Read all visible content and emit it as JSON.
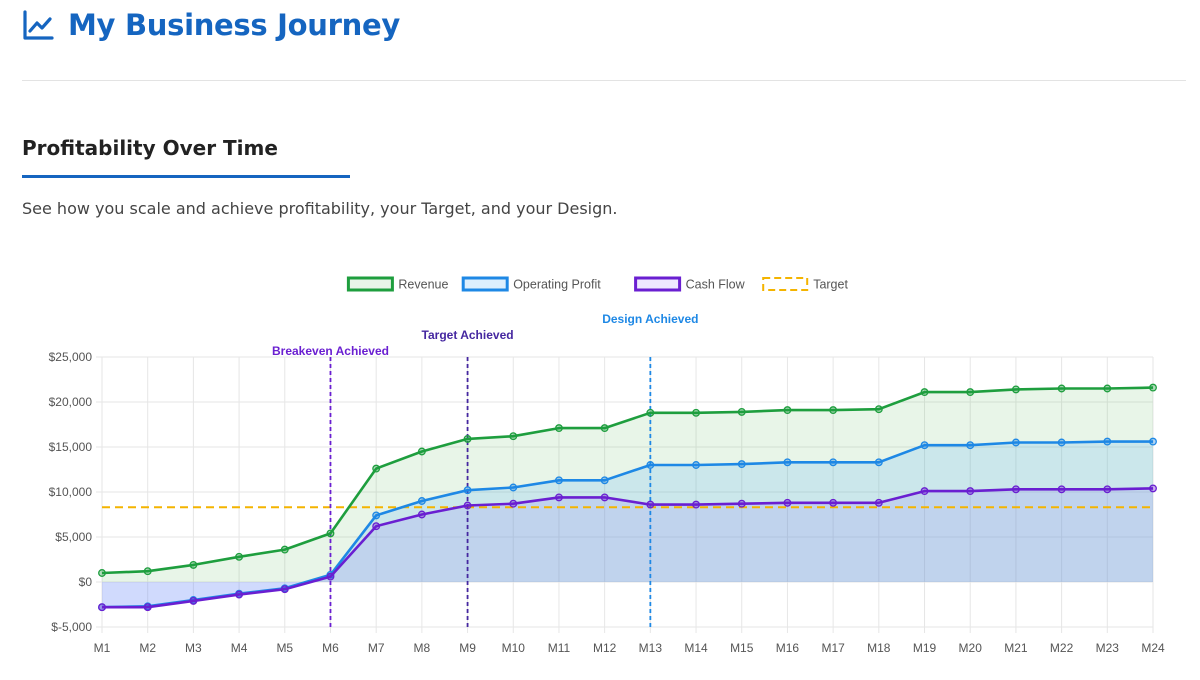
{
  "header": {
    "title": "My Business Journey",
    "icon": "chart-line-icon",
    "color": "#1565c0"
  },
  "section": {
    "title": "Profitability Over Time",
    "subtitle": "See how you scale and achieve profitability, your Target, and your Design."
  },
  "chart_data": {
    "type": "line",
    "title": "",
    "xlabel": "",
    "ylabel": "",
    "categories": [
      "M1",
      "M2",
      "M3",
      "M4",
      "M5",
      "M6",
      "M7",
      "M8",
      "M9",
      "M10",
      "M11",
      "M12",
      "M13",
      "M14",
      "M15",
      "M16",
      "M17",
      "M18",
      "M19",
      "M20",
      "M21",
      "M22",
      "M23",
      "M24"
    ],
    "ylim": [
      -5000,
      25000
    ],
    "yticks": [
      -5000,
      0,
      5000,
      10000,
      15000,
      20000,
      25000
    ],
    "ytick_labels": [
      "$-5,000",
      "$0",
      "$5,000",
      "$10,000",
      "$15,000",
      "$20,000",
      "$25,000"
    ],
    "grid": true,
    "legend_position": "top-center",
    "series": [
      {
        "name": "Revenue",
        "color": "#1e9e3e",
        "fill": "rgba(76,175,80,0.13)",
        "values": [
          1000,
          1200,
          1900,
          2800,
          3600,
          5400,
          12600,
          14500,
          15900,
          16200,
          17100,
          17100,
          18800,
          18800,
          18900,
          19100,
          19100,
          19200,
          21100,
          21100,
          21400,
          21500,
          21500,
          21600
        ]
      },
      {
        "name": "Operating Profit",
        "color": "#1e88e5",
        "fill": "rgba(100,181,246,0.22)",
        "values": [
          -2800,
          -2700,
          -2000,
          -1300,
          -700,
          800,
          7400,
          9000,
          10200,
          10500,
          11300,
          11300,
          13000,
          13000,
          13100,
          13300,
          13300,
          13300,
          15200,
          15200,
          15500,
          15500,
          15600,
          15600
        ]
      },
      {
        "name": "Cash Flow",
        "color": "#6a1fd1",
        "fill": "rgba(124,77,255,0.13)",
        "values": [
          -2800,
          -2800,
          -2100,
          -1400,
          -800,
          600,
          6200,
          7500,
          8500,
          8700,
          9400,
          9400,
          8600,
          8600,
          8700,
          8800,
          8800,
          8800,
          10100,
          10100,
          10300,
          10300,
          10300,
          10400
        ]
      }
    ],
    "target": {
      "name": "Target",
      "value": 8300,
      "color": "#f4b400"
    },
    "annotations": [
      {
        "label": "Breakeven Achieved",
        "at": "M6",
        "color": "#6a1fd1"
      },
      {
        "label": "Target Achieved",
        "at": "M9",
        "color": "#4527a0"
      },
      {
        "label": "Design Achieved",
        "at": "M13",
        "color": "#1e88e5"
      }
    ]
  }
}
